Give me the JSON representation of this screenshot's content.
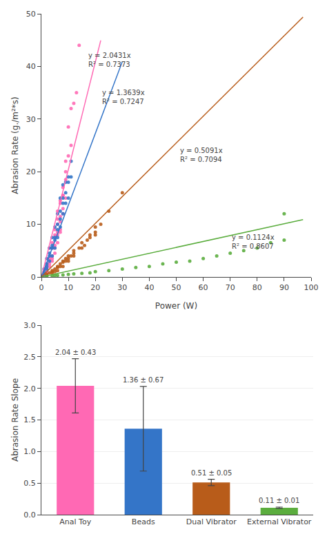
{
  "chart_data": [
    {
      "type": "scatter",
      "xlabel": "Power (W)",
      "ylabel": "Abrasion Rate (g./m²*s)",
      "xlim": [
        0,
        100
      ],
      "ylim": [
        0,
        50
      ],
      "xticks": [
        0,
        10,
        20,
        30,
        40,
        50,
        60,
        70,
        80,
        90,
        100
      ],
      "yticks": [
        0,
        10,
        20,
        30,
        40,
        50
      ],
      "grid": false,
      "series": [
        {
          "type": "scatter",
          "color": "#FF69B4",
          "marker": "circle",
          "x": [
            1,
            1,
            1,
            2,
            2,
            2,
            3,
            3,
            3,
            4,
            4,
            4,
            5,
            5,
            5,
            6,
            6,
            6,
            7,
            7,
            7,
            8,
            8,
            8,
            9,
            9,
            9,
            10,
            10,
            11,
            11,
            12,
            13,
            14,
            2,
            3,
            4,
            5,
            6,
            7,
            8,
            1,
            2,
            3,
            4,
            5,
            6,
            7,
            8,
            9,
            4,
            5,
            6,
            7
          ],
          "values": [
            0.4,
            0.8,
            1.5,
            1.0,
            2.0,
            2.5,
            2.5,
            3.5,
            5.5,
            3.5,
            5.5,
            6.5,
            5.5,
            7.5,
            9.0,
            8.0,
            10.0,
            12.5,
            9.0,
            11.5,
            14.5,
            12.0,
            15.5,
            17.0,
            15.0,
            18.5,
            22.0,
            23.0,
            28.5,
            25.0,
            32.0,
            33.0,
            35.0,
            44.0,
            0.8,
            2.0,
            3.0,
            4.5,
            6.5,
            8.5,
            13.0,
            0.3,
            1.5,
            3.0,
            4.0,
            6.0,
            8.5,
            10.5,
            15.5,
            20.0,
            5.5,
            8.0,
            11.0,
            14.0
          ]
        },
        {
          "type": "scatter",
          "color": "#3475C8",
          "marker": "circle",
          "x": [
            1,
            1,
            1,
            2,
            2,
            2,
            3,
            3,
            3,
            4,
            4,
            4,
            5,
            5,
            5,
            6,
            6,
            6,
            7,
            7,
            7,
            8,
            8,
            8,
            9,
            9,
            10,
            10,
            11,
            11,
            2,
            3,
            4,
            5,
            6,
            7,
            8,
            9,
            10
          ],
          "values": [
            0.5,
            1.0,
            1.5,
            1.5,
            2.5,
            3.5,
            3.0,
            4.5,
            5.5,
            4.0,
            6.0,
            7.5,
            5.5,
            7.5,
            9.5,
            7.5,
            10.0,
            12.0,
            9.5,
            12.5,
            15.0,
            12.0,
            15.0,
            17.5,
            14.0,
            18.0,
            15.0,
            19.0,
            19.0,
            22.0,
            2.0,
            4.0,
            5.5,
            7.0,
            9.0,
            11.0,
            14.0,
            16.0,
            18.0
          ]
        },
        {
          "type": "scatter",
          "color": "#B85C1A",
          "marker": "circle",
          "x": [
            2,
            3,
            4,
            5,
            6,
            7,
            8,
            9,
            10,
            12,
            15,
            18,
            20,
            25,
            30,
            4,
            6,
            8,
            10,
            12,
            15,
            18,
            20,
            5,
            7,
            9,
            11,
            14,
            17,
            20,
            22,
            2,
            4,
            6,
            8,
            10,
            12,
            16
          ],
          "values": [
            0.5,
            0.8,
            1.0,
            1.5,
            2.0,
            2.5,
            3.0,
            3.5,
            4.0,
            5.0,
            6.5,
            8.0,
            8.5,
            12.5,
            16.0,
            1.2,
            1.8,
            2.8,
            3.5,
            4.5,
            5.5,
            7.5,
            9.5,
            1.0,
            2.0,
            3.0,
            4.0,
            5.5,
            7.0,
            8.0,
            10.0,
            0.3,
            0.8,
            1.2,
            2.0,
            3.0,
            4.0,
            6.0
          ]
        },
        {
          "type": "scatter",
          "color": "#5BAD3E",
          "marker": "circle",
          "x": [
            2,
            4,
            5,
            6,
            8,
            10,
            12,
            15,
            18,
            20,
            25,
            30,
            35,
            40,
            45,
            50,
            55,
            60,
            65,
            70,
            75,
            80,
            85,
            90,
            90
          ],
          "values": [
            0.1,
            0.2,
            0.3,
            0.3,
            0.4,
            0.5,
            0.6,
            0.7,
            0.8,
            1.0,
            1.2,
            1.5,
            1.8,
            2.0,
            2.5,
            2.8,
            3.0,
            3.5,
            4.0,
            4.5,
            5.0,
            5.5,
            6.5,
            7.0,
            12.0
          ]
        },
        {
          "type": "line",
          "color": "#FF69B4",
          "line_style": "solid",
          "x": [
            0,
            22
          ],
          "values": [
            0,
            44.9482
          ]
        },
        {
          "type": "line",
          "color": "#3475C8",
          "line_style": "solid",
          "x": [
            0,
            30
          ],
          "values": [
            0,
            40.917
          ]
        },
        {
          "type": "line",
          "color": "#B85C1A",
          "line_style": "solid",
          "x": [
            0,
            97
          ],
          "values": [
            0,
            49.3827
          ]
        },
        {
          "type": "line",
          "color": "#5BAD3E",
          "line_style": "solid",
          "x": [
            0,
            97
          ],
          "values": [
            0,
            10.9028
          ]
        }
      ],
      "annotations": [
        {
          "text": "y = 2.0431x\nR² = 0.7373",
          "x": 17,
          "y": 43
        },
        {
          "text": "y = 1.3639x\nR² = 0.7247",
          "x": 22,
          "y": 36
        },
        {
          "text": "y = 0.5091x\nR² = 0.7094",
          "x": 51,
          "y": 25
        },
        {
          "text": "y = 0.1124x\nR² = 0.8607",
          "x": 70,
          "y": 8.5
        }
      ]
    },
    {
      "type": "bar",
      "categories": [
        "Anal Toy",
        "Beads",
        "Dual Vibrator",
        "External Vibrator"
      ],
      "values": [
        2.04,
        1.36,
        0.51,
        0.11
      ],
      "errors": [
        0.43,
        0.67,
        0.05,
        0.01
      ],
      "data_labels": true,
      "value_labels": [
        "2.04 ± 0.43",
        "1.36 ± 0.67",
        "0.51 ± 0.05",
        "0.11 ± 0.01"
      ],
      "colors": [
        "#FF69B4",
        "#3475C8",
        "#B85C1A",
        "#5BAD3E"
      ],
      "ylabel": "Abrasion Rate Slope",
      "ylim": [
        0,
        3
      ],
      "yticks": [
        {
          "value": 0,
          "label": "0.0"
        },
        0.5,
        {
          "value": 1.0,
          "label": "1.0"
        },
        1.5,
        {
          "value": 2.0,
          "label": "2.0"
        },
        2.5,
        {
          "value": 3.0,
          "label": "3.0"
        }
      ],
      "grid": true
    }
  ]
}
